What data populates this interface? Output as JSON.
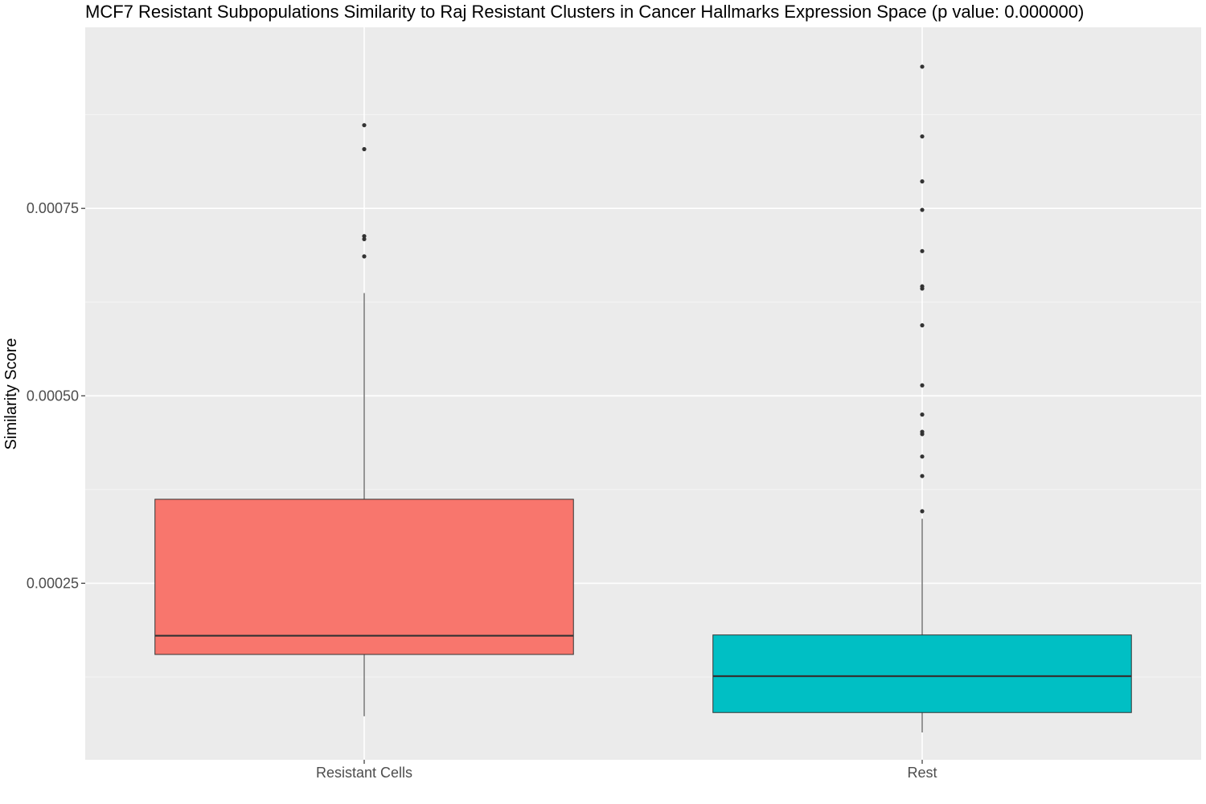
{
  "chart_data": {
    "type": "boxplot",
    "title": "MCF7 Resistant Subpopulations Similarity to Raj Resistant Clusters in Cancer Hallmarks Expression Space (p value: 0.000000)",
    "xlabel": "",
    "ylabel": "Similarity Score",
    "categories": [
      "Resistant Cells",
      "Rest"
    ],
    "y_ticks": [
      0.00025,
      0.0005,
      0.00075
    ],
    "y_tick_labels": [
      "0.00025",
      "0.00050",
      "0.00075"
    ],
    "ylim": [
      1.45e-05,
      0.0009915
    ],
    "grid": true,
    "legend": "none",
    "boxes": [
      {
        "category": "Resistant Cells",
        "color": "#F8766D",
        "whisker_low": 7.25e-05,
        "q1": 0.000155,
        "median": 0.00018,
        "q3": 0.000362,
        "whisker_high": 0.000637,
        "outliers": [
          0.000686,
          0.000709,
          0.000713,
          0.000829,
          0.000861
        ]
      },
      {
        "category": "Rest",
        "color": "#00BFC4",
        "whisker_low": 5.1e-05,
        "q1": 7.75e-05,
        "median": 0.000126,
        "q3": 0.000181,
        "whisker_high": 0.000336,
        "outliers": [
          0.000346,
          0.000393,
          0.000419,
          0.000449,
          0.000452,
          0.000475,
          0.000514,
          0.000594,
          0.000643,
          0.000646,
          0.000693,
          0.000748,
          0.000786,
          0.000846,
          0.000939
        ]
      }
    ]
  }
}
